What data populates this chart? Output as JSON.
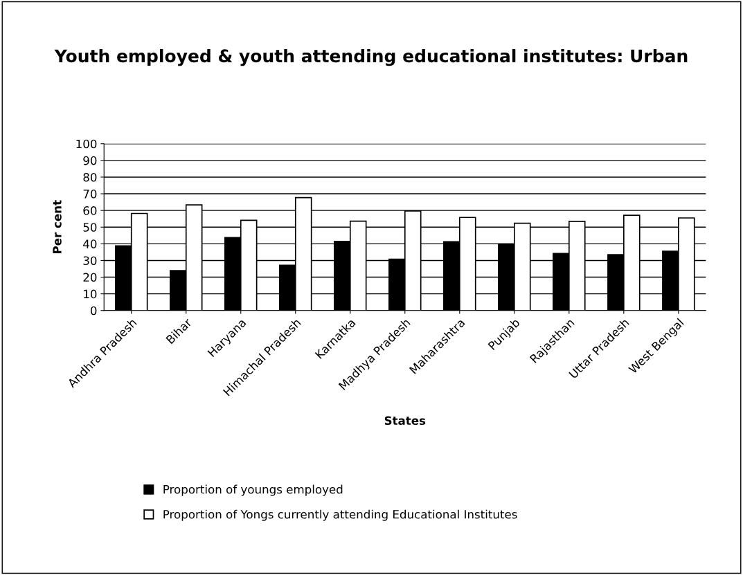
{
  "chart_data": {
    "type": "bar",
    "title": "Youth employed & youth attending educational institutes: Urban",
    "xlabel": "States",
    "ylabel": "Per cent",
    "categories": [
      "Andhra Pradesh",
      "Bihar",
      "Haryana",
      "Himachal Pradesh",
      "Karnatka",
      "Madhya Pradesh",
      "Maharashtra",
      "Punjab",
      "Rajasthan",
      "Uttar Pradesh",
      "West Bengal"
    ],
    "series": [
      {
        "name": "Proportion of youngs employed",
        "color": "#000000",
        "values": [
          38.8,
          23.9,
          43.7,
          27.1,
          41.5,
          30.8,
          41.3,
          39.9,
          34.2,
          33.5,
          35.5
        ]
      },
      {
        "name": "Proportion of Yongs currently attending Educational Institutes",
        "color": "#ffffff",
        "values": [
          58.2,
          63.3,
          54.1,
          67.7,
          53.6,
          59.7,
          55.8,
          52.3,
          53.5,
          57.1,
          55.5
        ]
      }
    ],
    "ylim": [
      0,
      100
    ],
    "yticks": [
      0,
      10,
      20,
      30,
      40,
      50,
      60,
      70,
      80,
      90,
      100
    ],
    "grid": "y",
    "legend": "bottom"
  }
}
